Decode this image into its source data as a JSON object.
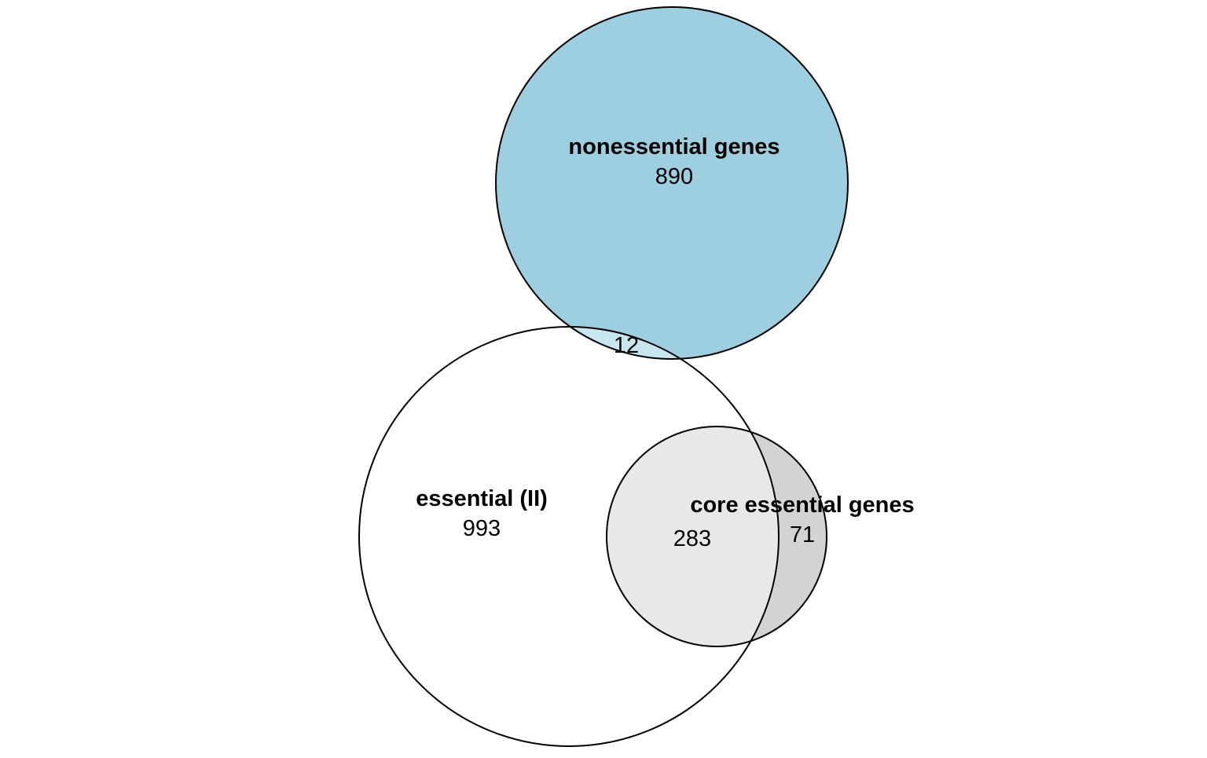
{
  "sets": {
    "nonessential": {
      "label": "nonessential genes",
      "only_count": "890",
      "color": "#9ecfe0"
    },
    "essential": {
      "label": "essential (II)",
      "only_count": "993",
      "color": "#ffffff"
    },
    "core_essential": {
      "label": "core essential genes",
      "only_count": "71",
      "color": "#d3d3d3"
    }
  },
  "intersections": {
    "essential_and_nonessential": "12",
    "essential_and_core_essential": "283"
  },
  "colors": {
    "essential_nonessential_overlap": "#c8e6f0",
    "essential_core_overlap": "#e8e8e8",
    "outline": "#000000"
  }
}
